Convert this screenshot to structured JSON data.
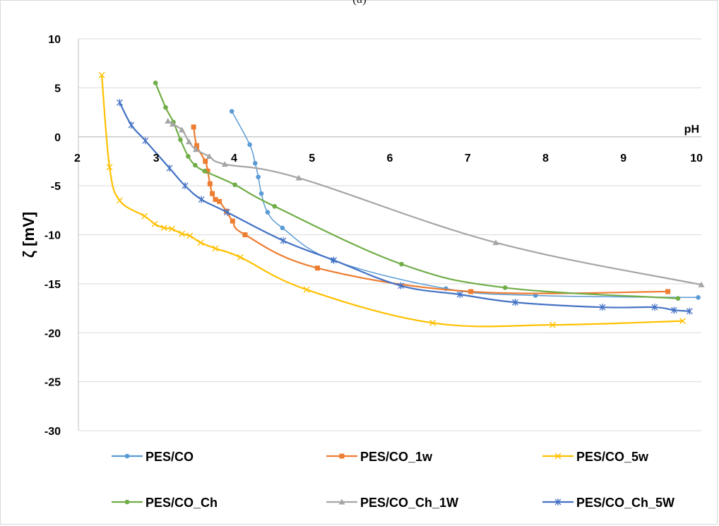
{
  "panel_label": "(a)",
  "colors": {
    "PES/CO": "#5b9bd5",
    "PES/CO_1w": "#ed7d31",
    "PES/CO_5w": "#ffc000",
    "PES/CO_Ch": "#70ad47",
    "PES/CO_Ch_1W": "#a5a5a5",
    "PES/CO_Ch_5W": "#4472c4"
  },
  "chart_data": {
    "type": "scatter",
    "title": "",
    "xlabel": "pH",
    "ylabel": "ζ [mV]",
    "xlim": [
      2,
      10
    ],
    "ylim": [
      -30,
      10
    ],
    "x_ticks": [
      "2",
      "3",
      "4",
      "5",
      "6",
      "7",
      "8",
      "9",
      "10"
    ],
    "y_ticks": [
      "10",
      "5",
      "0",
      "-5",
      "-10",
      "-15",
      "-20",
      "-25",
      "-30"
    ],
    "x_axis_crosses_at_y": 0,
    "grid": "horizontal",
    "legend_position": "bottom",
    "series": [
      {
        "name": "PES/CO",
        "marker": "circle",
        "x": [
          3.97,
          4.2,
          4.27,
          4.31,
          4.35,
          4.43,
          4.62,
          5.27,
          6.72,
          7.87,
          9.96
        ],
        "y": [
          2.6,
          -0.8,
          -2.7,
          -4.1,
          -5.8,
          -7.7,
          -9.3,
          -12.6,
          -15.5,
          -16.2,
          -16.4
        ]
      },
      {
        "name": "PES/CO_1w",
        "marker": "square",
        "x": [
          3.48,
          3.52,
          3.63,
          3.66,
          3.69,
          3.72,
          3.76,
          3.81,
          3.9,
          3.98,
          4.14,
          5.07,
          7.04,
          9.57
        ],
        "y": [
          1.0,
          -0.9,
          -2.5,
          -3.5,
          -4.8,
          -5.8,
          -6.4,
          -6.6,
          -7.6,
          -8.6,
          -10.0,
          -13.4,
          -15.8,
          -15.8
        ]
      },
      {
        "name": "PES/CO_5w",
        "marker": "x",
        "x": [
          2.3,
          2.4,
          2.53,
          2.85,
          2.98,
          3.1,
          3.2,
          3.33,
          3.43,
          3.57,
          3.76,
          4.08,
          4.93,
          6.55,
          8.09,
          9.76
        ],
        "y": [
          6.3,
          -3.1,
          -6.5,
          -8.1,
          -8.9,
          -9.3,
          -9.4,
          -9.9,
          -10.1,
          -10.8,
          -11.4,
          -12.3,
          -15.6,
          -19.0,
          -19.2,
          -18.8
        ]
      },
      {
        "name": "PES/CO_Ch",
        "marker": "circle",
        "x": [
          2.99,
          3.12,
          3.22,
          3.31,
          3.41,
          3.5,
          3.62,
          4.01,
          4.52,
          6.15,
          7.48,
          9.7
        ],
        "y": [
          5.5,
          3.0,
          1.5,
          -0.3,
          -2.0,
          -2.9,
          -3.5,
          -4.9,
          -7.1,
          -13.0,
          -15.4,
          -16.5
        ]
      },
      {
        "name": "PES/CO_Ch_1W",
        "marker": "triangle",
        "x": [
          3.15,
          3.21,
          3.33,
          3.42,
          3.51,
          3.68,
          3.88,
          4.83,
          7.36,
          10.0
        ],
        "y": [
          1.6,
          1.3,
          0.7,
          -0.5,
          -1.3,
          -2.0,
          -2.8,
          -4.2,
          -10.8,
          -15.1
        ]
      },
      {
        "name": "PES/CO_Ch_5W",
        "marker": "star",
        "x": [
          2.53,
          2.68,
          2.86,
          3.17,
          3.37,
          3.58,
          3.91,
          4.63,
          5.28,
          6.14,
          6.9,
          7.61,
          8.73,
          9.4,
          9.65,
          9.85
        ],
        "y": [
          3.5,
          1.2,
          -0.4,
          -3.2,
          -5.0,
          -6.4,
          -7.7,
          -10.6,
          -12.6,
          -15.2,
          -16.1,
          -16.9,
          -17.4,
          -17.4,
          -17.7,
          -17.8
        ]
      }
    ]
  }
}
